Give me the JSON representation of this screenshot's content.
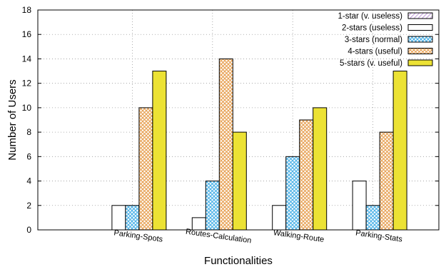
{
  "chart_data": {
    "type": "bar",
    "categories": [
      "Parking-Spots",
      "Routes-Calculation",
      "Walking-Route",
      "Parking-Stats"
    ],
    "series": [
      {
        "name": "1-star (v. useless)",
        "values": [
          0,
          0,
          0,
          0
        ],
        "color": "#b07fd0",
        "pattern": "diagonal-hatch"
      },
      {
        "name": "2-stars (useless)",
        "values": [
          2,
          1,
          2,
          4
        ],
        "color": "#ffffff",
        "pattern": "none"
      },
      {
        "name": "3-stars (normal)",
        "values": [
          2,
          4,
          6,
          2
        ],
        "color": "#4fb3e8",
        "pattern": "crosshatch"
      },
      {
        "name": "4-stars (useful)",
        "values": [
          10,
          14,
          9,
          8
        ],
        "color": "#e8a357",
        "pattern": "crosshatch"
      },
      {
        "name": "5-stars (v. useful)",
        "values": [
          13,
          8,
          10,
          13
        ],
        "color": "#ece234",
        "pattern": "solid"
      }
    ],
    "xlabel": "Functionalities",
    "ylabel": "Number of Users",
    "ylim": [
      0,
      18
    ],
    "yticks": [
      "0",
      "2",
      "4",
      "6",
      "8",
      "10",
      "12",
      "14",
      "16",
      "18"
    ],
    "grid": true,
    "legend": "top-right"
  }
}
